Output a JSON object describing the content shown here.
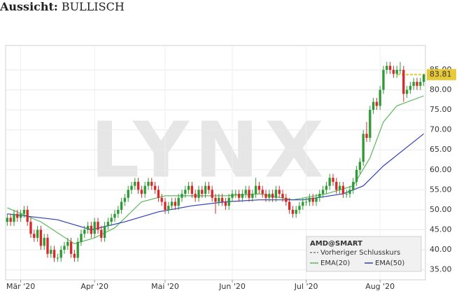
{
  "chart_data": {
    "type": "candlestick",
    "title": "Aussicht:",
    "outlook": "BULLISCH",
    "watermark": "LYNX",
    "symbol": "AMD@SMART",
    "previous_close_label": "Vorheriger Schlusskurs",
    "up_color": "#2f9a36",
    "down_color": "#d42a2a",
    "grid": true,
    "xlim": [
      -0.5,
      124.5
    ],
    "ylim": [
      32.5,
      91.1
    ],
    "yticks": [
      {
        "value": 35,
        "label": "35.00"
      },
      {
        "value": 40,
        "label": "40.00"
      },
      {
        "value": 45,
        "label": "45.00"
      },
      {
        "value": 50,
        "label": "50.00"
      },
      {
        "value": 55,
        "label": "55.00"
      },
      {
        "value": 60,
        "label": "60.00"
      },
      {
        "value": 65,
        "label": "65.00"
      },
      {
        "value": 70,
        "label": "70.00"
      },
      {
        "value": 75,
        "label": "75.00"
      },
      {
        "value": 80,
        "label": "80.00"
      },
      {
        "value": 85,
        "label": "85.00"
      }
    ],
    "xticks": [
      {
        "value": 4,
        "label": "Mär '20"
      },
      {
        "value": 26,
        "label": "Apr '20"
      },
      {
        "value": 47,
        "label": "Mai '20"
      },
      {
        "value": 67,
        "label": "Jun '20"
      },
      {
        "value": 89,
        "label": "Jul '20"
      },
      {
        "value": 111,
        "label": "Aug '20"
      }
    ],
    "last_price": 83.81,
    "last_price_color": "#e8c93a",
    "ohlc": [
      [
        47,
        49,
        46,
        48
      ],
      [
        48,
        49,
        46,
        47
      ],
      [
        47,
        50,
        46,
        49
      ],
      [
        49,
        50,
        47,
        48
      ],
      [
        48,
        50,
        47,
        49
      ],
      [
        49,
        51,
        48,
        50
      ],
      [
        50,
        51,
        46,
        47
      ],
      [
        47,
        48,
        43,
        44
      ],
      [
        44,
        45,
        42,
        43
      ],
      [
        43,
        46,
        42,
        45
      ],
      [
        45,
        46,
        40,
        41
      ],
      [
        41,
        44,
        40,
        43
      ],
      [
        43,
        44,
        38,
        39
      ],
      [
        39,
        41,
        38,
        40
      ],
      [
        40,
        41,
        37,
        38
      ],
      [
        38,
        39,
        37,
        38
      ],
      [
        38,
        41,
        37,
        40
      ],
      [
        40,
        42,
        39,
        41
      ],
      [
        41,
        43,
        40,
        42
      ],
      [
        42,
        43,
        38,
        39
      ],
      [
        39,
        40,
        37,
        38
      ],
      [
        38,
        43,
        37,
        42
      ],
      [
        42,
        45,
        41,
        44
      ],
      [
        44,
        46,
        43,
        45
      ],
      [
        45,
        47,
        44,
        46
      ],
      [
        46,
        47,
        43,
        44
      ],
      [
        44,
        48,
        43,
        47
      ],
      [
        47,
        48,
        44,
        45
      ],
      [
        45,
        46,
        42,
        43
      ],
      [
        43,
        47,
        42,
        46
      ],
      [
        46,
        48,
        45,
        47
      ],
      [
        47,
        49,
        46,
        48
      ],
      [
        48,
        50,
        47,
        49
      ],
      [
        49,
        51,
        48,
        50
      ],
      [
        50,
        53,
        49,
        52
      ],
      [
        52,
        54,
        51,
        53
      ],
      [
        53,
        56,
        52,
        55
      ],
      [
        55,
        57,
        54,
        56
      ],
      [
        56,
        58,
        55,
        57
      ],
      [
        57,
        58,
        54,
        55
      ],
      [
        55,
        56,
        53,
        54
      ],
      [
        54,
        57,
        53,
        56
      ],
      [
        56,
        58,
        55,
        57
      ],
      [
        57,
        58,
        55,
        56
      ],
      [
        56,
        57,
        54,
        55
      ],
      [
        55,
        56,
        52,
        53
      ],
      [
        53,
        54,
        51,
        52
      ],
      [
        52,
        53,
        49,
        50
      ],
      [
        50,
        52,
        49,
        51
      ],
      [
        51,
        53,
        50,
        52
      ],
      [
        52,
        53,
        50,
        51
      ],
      [
        51,
        54,
        50,
        53
      ],
      [
        53,
        55,
        52,
        54
      ],
      [
        54,
        56,
        53,
        55
      ],
      [
        55,
        57,
        54,
        56
      ],
      [
        56,
        57,
        53,
        54
      ],
      [
        54,
        55,
        52,
        53
      ],
      [
        53,
        56,
        52,
        55
      ],
      [
        55,
        56,
        53,
        54
      ],
      [
        54,
        57,
        53,
        56
      ],
      [
        56,
        57,
        54,
        55
      ],
      [
        55,
        56,
        52,
        53
      ],
      [
        53,
        54,
        49,
        52
      ],
      [
        52,
        54,
        51,
        53
      ],
      [
        53,
        54,
        51,
        52
      ],
      [
        52,
        53,
        50,
        51
      ],
      [
        51,
        54,
        50,
        53
      ],
      [
        53,
        55,
        52,
        54
      ],
      [
        54,
        55,
        53,
        54
      ],
      [
        54,
        55,
        52,
        53
      ],
      [
        53,
        55,
        52,
        54
      ],
      [
        54,
        56,
        53,
        55
      ],
      [
        55,
        56,
        52,
        53
      ],
      [
        53,
        55,
        52,
        54
      ],
      [
        54,
        58,
        53,
        56
      ],
      [
        56,
        57,
        54,
        55
      ],
      [
        55,
        56,
        53,
        54
      ],
      [
        54,
        55,
        52,
        53
      ],
      [
        53,
        55,
        52,
        54
      ],
      [
        54,
        55,
        52,
        53
      ],
      [
        53,
        56,
        52,
        55
      ],
      [
        55,
        56,
        53,
        54
      ],
      [
        54,
        55,
        52,
        53
      ],
      [
        53,
        54,
        51,
        52
      ],
      [
        52,
        53,
        49,
        50
      ],
      [
        50,
        51,
        48,
        49
      ],
      [
        49,
        51,
        48,
        50
      ],
      [
        50,
        52,
        49,
        51
      ],
      [
        51,
        53,
        50,
        52
      ],
      [
        52,
        53,
        51,
        52
      ],
      [
        52,
        54,
        51,
        53
      ],
      [
        53,
        54,
        51,
        52
      ],
      [
        52,
        54,
        51,
        53
      ],
      [
        53,
        55,
        52,
        54
      ],
      [
        54,
        56,
        53,
        55
      ],
      [
        55,
        57,
        54,
        56
      ],
      [
        56,
        59,
        55,
        58
      ],
      [
        58,
        59,
        56,
        57
      ],
      [
        57,
        58,
        54,
        55
      ],
      [
        55,
        57,
        54,
        56
      ],
      [
        56,
        57,
        53,
        54
      ],
      [
        54,
        55,
        53,
        54
      ],
      [
        54,
        56,
        53,
        55
      ],
      [
        55,
        58,
        54,
        57
      ],
      [
        57,
        61,
        56,
        60
      ],
      [
        60,
        63,
        59,
        62
      ],
      [
        62,
        70,
        61,
        69
      ],
      [
        69,
        72,
        67,
        68
      ],
      [
        68,
        76,
        67,
        75
      ],
      [
        75,
        78,
        74,
        77
      ],
      [
        77,
        78,
        75,
        76
      ],
      [
        76,
        81,
        75,
        80
      ],
      [
        80,
        86,
        79,
        85
      ],
      [
        85,
        87,
        84,
        86
      ],
      [
        86,
        87,
        84,
        85
      ],
      [
        85,
        86,
        83,
        84
      ],
      [
        84,
        86,
        83,
        85
      ],
      [
        85,
        87,
        84,
        85
      ],
      [
        85,
        86,
        77,
        79
      ],
      [
        79,
        81,
        78,
        80
      ],
      [
        80,
        82,
        79,
        81
      ],
      [
        81,
        83,
        80,
        82
      ],
      [
        82,
        83,
        80,
        81
      ],
      [
        81,
        83,
        80,
        82
      ],
      [
        82,
        84,
        81,
        83.81
      ]
    ],
    "series": [
      {
        "name": "EMA(20)",
        "color": "#5cb85c",
        "x": [
          0,
          10,
          20,
          26,
          32,
          40,
          47,
          55,
          65,
          75,
          85,
          95,
          103,
          108,
          112,
          116,
          124
        ],
        "values": [
          50.5,
          47,
          41.5,
          43,
          45.5,
          52,
          53.5,
          53.5,
          53.5,
          54,
          52.5,
          54,
          56,
          63,
          72,
          76,
          78.5
        ]
      },
      {
        "name": "EMA(50)",
        "color": "#2e3fb8",
        "x": [
          0,
          15,
          25,
          35,
          45,
          55,
          65,
          75,
          88,
          100,
          106,
          112,
          118,
          124
        ],
        "values": [
          49,
          47.5,
          45,
          47,
          49.5,
          51,
          52,
          52.5,
          52.5,
          54,
          56,
          61,
          65,
          69
        ]
      }
    ]
  }
}
